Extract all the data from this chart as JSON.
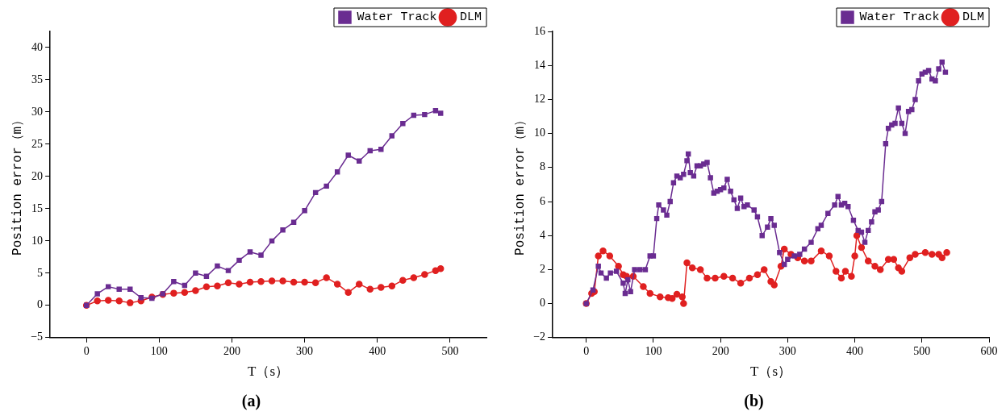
{
  "chart_data": [
    {
      "type": "line",
      "xlabel": "T（s）",
      "ylabel": "Position error（m）",
      "annotations": [
        "(a)"
      ],
      "legend": "top right",
      "grid": false,
      "xlim": [
        -50,
        550
      ],
      "xticks": [
        0,
        100,
        200,
        300,
        400,
        500
      ],
      "ylim": [
        -5,
        42.5
      ],
      "yticks": [
        {
          "value": -5,
          "label": "−5"
        },
        0,
        5,
        10,
        15,
        20,
        25,
        30,
        35,
        40
      ],
      "series": [
        {
          "name": "Water Track",
          "color": "#6a2c91",
          "marker": "square",
          "x": [
            0,
            15,
            30,
            45,
            60,
            75,
            90,
            105,
            120,
            135,
            150,
            165,
            180,
            195,
            210,
            225,
            240,
            255,
            270,
            285,
            300,
            315,
            330,
            345,
            360,
            375,
            390,
            405,
            420,
            435,
            450,
            465,
            480,
            487
          ],
          "values": [
            0,
            1.8,
            2.9,
            2.5,
            2.5,
            1.2,
            1.1,
            1.8,
            3.7,
            3.1,
            5.0,
            4.5,
            6.1,
            5.4,
            7.0,
            8.3,
            7.8,
            10.0,
            11.7,
            12.9,
            14.7,
            17.5,
            18.5,
            20.7,
            23.3,
            22.4,
            24.0,
            24.2,
            26.3,
            28.2,
            29.5,
            29.6,
            30.2,
            29.8
          ]
        },
        {
          "name": "DLM",
          "color": "#e02020",
          "marker": "circle",
          "x": [
            0,
            15,
            30,
            45,
            60,
            75,
            90,
            105,
            120,
            135,
            150,
            165,
            180,
            195,
            210,
            225,
            240,
            255,
            270,
            285,
            300,
            315,
            330,
            345,
            360,
            375,
            390,
            405,
            420,
            435,
            450,
            465,
            480,
            487
          ],
          "values": [
            0,
            0.7,
            0.8,
            0.7,
            0.4,
            0.7,
            1.3,
            1.7,
            1.9,
            2.0,
            2.3,
            2.9,
            3.0,
            3.5,
            3.3,
            3.6,
            3.7,
            3.8,
            3.8,
            3.6,
            3.6,
            3.5,
            4.3,
            3.3,
            2.0,
            3.3,
            2.5,
            2.8,
            3.0,
            3.9,
            4.3,
            4.8,
            5.4,
            5.7
          ]
        }
      ]
    },
    {
      "type": "line",
      "xlabel": "T（s）",
      "ylabel": "Position error（m）",
      "annotations": [
        "(b)"
      ],
      "legend": "top right",
      "grid": false,
      "xlim": [
        -50,
        600
      ],
      "xticks": [
        0,
        100,
        200,
        300,
        400,
        500,
        600
      ],
      "ylim": [
        -2,
        16
      ],
      "yticks": [
        {
          "value": -2,
          "label": "−2"
        },
        0,
        2,
        4,
        6,
        8,
        10,
        12,
        14,
        16
      ],
      "series": [
        {
          "name": "Water Track",
          "color": "#6a2c91",
          "marker": "square",
          "x": [
            0,
            10,
            18,
            22,
            30,
            36,
            45,
            55,
            58,
            62,
            66,
            72,
            80,
            88,
            95,
            100,
            105,
            108,
            115,
            120,
            125,
            130,
            135,
            140,
            145,
            150,
            152,
            155,
            160,
            165,
            170,
            175,
            180,
            185,
            190,
            195,
            200,
            205,
            210,
            215,
            220,
            225,
            230,
            235,
            240,
            250,
            255,
            262,
            270,
            275,
            280,
            288,
            295,
            300,
            310,
            318,
            325,
            335,
            345,
            350,
            360,
            370,
            375,
            380,
            385,
            390,
            398,
            405,
            410,
            415,
            420,
            425,
            430,
            435,
            440,
            446,
            450,
            455,
            460,
            465,
            470,
            475,
            480,
            485,
            490,
            495,
            500,
            505,
            510,
            515,
            520,
            525,
            530,
            535
          ],
          "values": [
            0,
            0.8,
            2.2,
            1.8,
            1.5,
            1.8,
            1.9,
            1.2,
            0.6,
            1.4,
            0.7,
            2.0,
            2.0,
            2.0,
            2.8,
            2.8,
            5.0,
            5.8,
            5.5,
            5.2,
            6.0,
            7.1,
            7.5,
            7.4,
            7.6,
            8.4,
            8.8,
            7.7,
            7.5,
            8.1,
            8.1,
            8.2,
            8.3,
            7.4,
            6.5,
            6.6,
            6.7,
            6.8,
            7.3,
            6.6,
            6.1,
            5.6,
            6.2,
            5.7,
            5.8,
            5.5,
            5.1,
            4.0,
            4.5,
            5.0,
            4.6,
            3.0,
            2.3,
            2.6,
            2.8,
            2.9,
            3.2,
            3.6,
            4.4,
            4.6,
            5.3,
            5.8,
            6.3,
            5.8,
            5.9,
            5.7,
            4.9,
            4.3,
            4.2,
            3.6,
            4.3,
            4.8,
            5.4,
            5.5,
            6.0,
            9.4,
            10.3,
            10.5,
            10.6,
            11.5,
            10.6,
            10.0,
            11.3,
            11.4,
            12.0,
            13.1,
            13.5,
            13.6,
            13.7,
            13.2,
            13.1,
            13.8,
            14.2,
            13.6
          ]
        },
        {
          "name": "DLM",
          "color": "#e02020",
          "marker": "circle",
          "x": [
            0,
            8,
            12,
            18,
            25,
            35,
            48,
            55,
            60,
            70,
            85,
            95,
            110,
            122,
            128,
            135,
            143,
            145,
            150,
            158,
            170,
            180,
            192,
            205,
            218,
            230,
            243,
            255,
            265,
            275,
            280,
            290,
            295,
            305,
            315,
            325,
            335,
            350,
            362,
            372,
            380,
            386,
            395,
            400,
            403,
            410,
            420,
            430,
            438,
            450,
            458,
            465,
            470,
            482,
            490,
            505,
            515,
            525,
            530,
            537
          ],
          "values": [
            0,
            0.6,
            0.7,
            2.8,
            3.1,
            2.8,
            2.2,
            1.7,
            1.6,
            1.6,
            1.0,
            0.6,
            0.4,
            0.35,
            0.3,
            0.55,
            0.4,
            0.0,
            2.4,
            2.1,
            2.0,
            1.5,
            1.5,
            1.6,
            1.5,
            1.2,
            1.5,
            1.7,
            2.0,
            1.3,
            1.1,
            2.2,
            3.2,
            2.9,
            2.7,
            2.5,
            2.5,
            3.1,
            2.8,
            1.9,
            1.5,
            1.9,
            1.6,
            2.8,
            4.0,
            3.3,
            2.5,
            2.2,
            2.0,
            2.6,
            2.6,
            2.1,
            1.9,
            2.7,
            2.9,
            3.0,
            2.9,
            2.9,
            2.7,
            3.0
          ]
        }
      ]
    }
  ]
}
